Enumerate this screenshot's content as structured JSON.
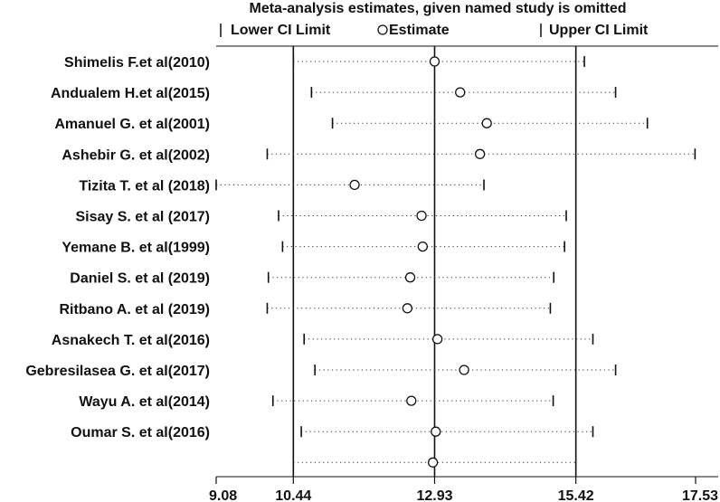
{
  "chart_data": {
    "type": "forest",
    "title": "Meta-analysis estimates, given named study is omitted",
    "legend": {
      "lower": "Lower CI Limit",
      "estimate": "Estimate",
      "upper": "Upper CI Limit",
      "placement": "top"
    },
    "x_ticks": [
      "9.08",
      "10.44",
      "12.93",
      "15.42",
      "17.53"
    ],
    "xlim": [
      9.08,
      17.53
    ],
    "reference_lines": [
      10.44,
      12.93,
      15.42
    ],
    "studies": [
      {
        "label": "Shimelis F.et al(2010)",
        "lower": 10.44,
        "estimate": 12.93,
        "upper": 15.57
      },
      {
        "label": "Andualem H.et al(2015)",
        "lower": 10.76,
        "estimate": 13.38,
        "upper": 16.12
      },
      {
        "label": "Amanuel G. et al(2001)",
        "lower": 11.13,
        "estimate": 13.85,
        "upper": 16.68
      },
      {
        "label": "Ashebir G. et al(2002)",
        "lower": 9.98,
        "estimate": 13.73,
        "upper": 17.52
      },
      {
        "label": "Tizita T. et al (2018)",
        "lower": 9.08,
        "estimate": 11.52,
        "upper": 13.8
      },
      {
        "label": "Sisay S. et al (2017)",
        "lower": 10.18,
        "estimate": 12.7,
        "upper": 15.25
      },
      {
        "label": "Yemane B. et al(1999)",
        "lower": 10.25,
        "estimate": 12.72,
        "upper": 15.22
      },
      {
        "label": "Daniel S. et al (2019)",
        "lower": 10.0,
        "estimate": 12.5,
        "upper": 15.03
      },
      {
        "label": "Ritbano A. et al (2019)",
        "lower": 9.98,
        "estimate": 12.45,
        "upper": 14.97
      },
      {
        "label": "Asnakech T. et al(2016)",
        "lower": 10.63,
        "estimate": 12.98,
        "upper": 15.72
      },
      {
        "label": "Gebresilasea G. et al(2017)",
        "lower": 10.82,
        "estimate": 13.45,
        "upper": 16.12
      },
      {
        "label": "Wayu A. et al(2014)",
        "lower": 10.08,
        "estimate": 12.52,
        "upper": 15.02
      },
      {
        "label": "Oumar S. et al(2016)",
        "lower": 10.58,
        "estimate": 12.95,
        "upper": 15.72
      }
    ],
    "overall": {
      "lower": 10.44,
      "estimate": 12.9,
      "upper": 15.42
    }
  }
}
